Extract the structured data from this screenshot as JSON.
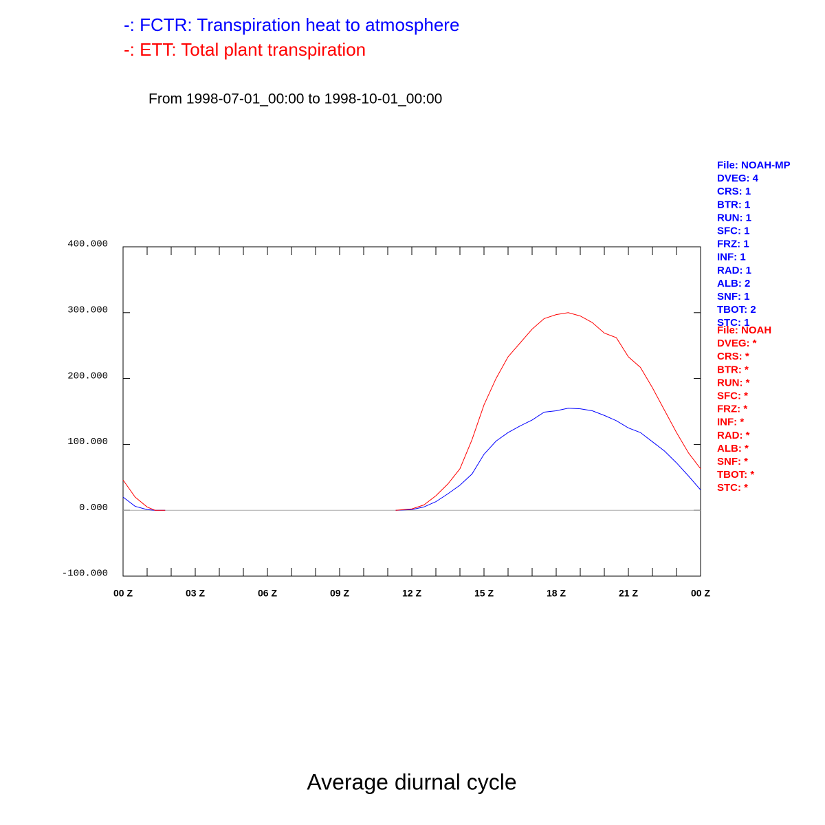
{
  "chart_data": {
    "type": "line",
    "title": "Average diurnal cycle",
    "subtitle": "From 1998-07-01_00:00 to 1998-10-01_00:00",
    "x": [
      0,
      0.5,
      1,
      1.33,
      1.75,
      6,
      11.33,
      12,
      12.5,
      13,
      13.5,
      14,
      14.5,
      15,
      15.5,
      16,
      16.5,
      17,
      17.5,
      18,
      18.5,
      19,
      19.5,
      20,
      20.5,
      21,
      21.5,
      22,
      22.5,
      23,
      23.5,
      24
    ],
    "series": [
      {
        "name": "-: FCTR: Transpiration heat to atmosphere",
        "color": "#0000ff",
        "values": [
          20,
          6,
          1,
          0,
          0,
          null,
          0,
          1,
          5,
          13,
          25,
          38,
          55,
          85,
          105,
          118,
          128,
          137,
          149,
          151,
          155,
          154,
          151,
          144,
          136,
          125,
          118,
          104,
          90,
          72,
          52,
          31
        ]
      },
      {
        "name": "-: ETT: Total plant transpiration",
        "color": "#ff0000",
        "values": [
          46,
          20,
          5,
          0,
          0,
          null,
          0,
          2,
          8,
          22,
          40,
          63,
          107,
          160,
          200,
          233,
          254,
          275,
          291,
          297,
          300,
          295,
          285,
          269,
          262,
          233,
          217,
          186,
          152,
          118,
          87,
          63
        ]
      }
    ],
    "xlim": [
      0,
      24
    ],
    "xticks": [
      {
        "value": 0,
        "label": "00 Z"
      },
      {
        "value": 3,
        "label": "03 Z"
      },
      {
        "value": 6,
        "label": "06 Z"
      },
      {
        "value": 9,
        "label": "09 Z"
      },
      {
        "value": 12,
        "label": "12 Z"
      },
      {
        "value": 15,
        "label": "15 Z"
      },
      {
        "value": 18,
        "label": "18 Z"
      },
      {
        "value": 21,
        "label": "21 Z"
      },
      {
        "value": 24,
        "label": "00 Z"
      }
    ],
    "ylim": [
      -100,
      400
    ],
    "yticks": [
      {
        "value": -100,
        "label": "-100.000"
      },
      {
        "value": 0,
        "label": "0.000"
      },
      {
        "value": 100,
        "label": "100.000"
      },
      {
        "value": 200,
        "label": "200.000"
      },
      {
        "value": 300,
        "label": "300.000"
      },
      {
        "value": 400,
        "label": "400.000"
      }
    ],
    "annotations": [
      {
        "color": "#0000ff",
        "lines": [
          "File: NOAH-MP",
          "DVEG: 4",
          "CRS: 1",
          "BTR: 1",
          "RUN: 1",
          "SFC: 1",
          "FRZ: 1",
          "INF: 1",
          "RAD: 1",
          "ALB: 2",
          "SNF: 1",
          "TBOT: 2",
          "STC: 1"
        ]
      },
      {
        "color": "#ff0000",
        "lines": [
          "File: NOAH",
          "DVEG: *",
          "CRS: *",
          "BTR: *",
          "RUN: *",
          "SFC: *",
          "FRZ: *",
          "INF: *",
          "RAD: *",
          "ALB: *",
          "SNF: *",
          "TBOT: *",
          "STC: *"
        ]
      }
    ]
  }
}
